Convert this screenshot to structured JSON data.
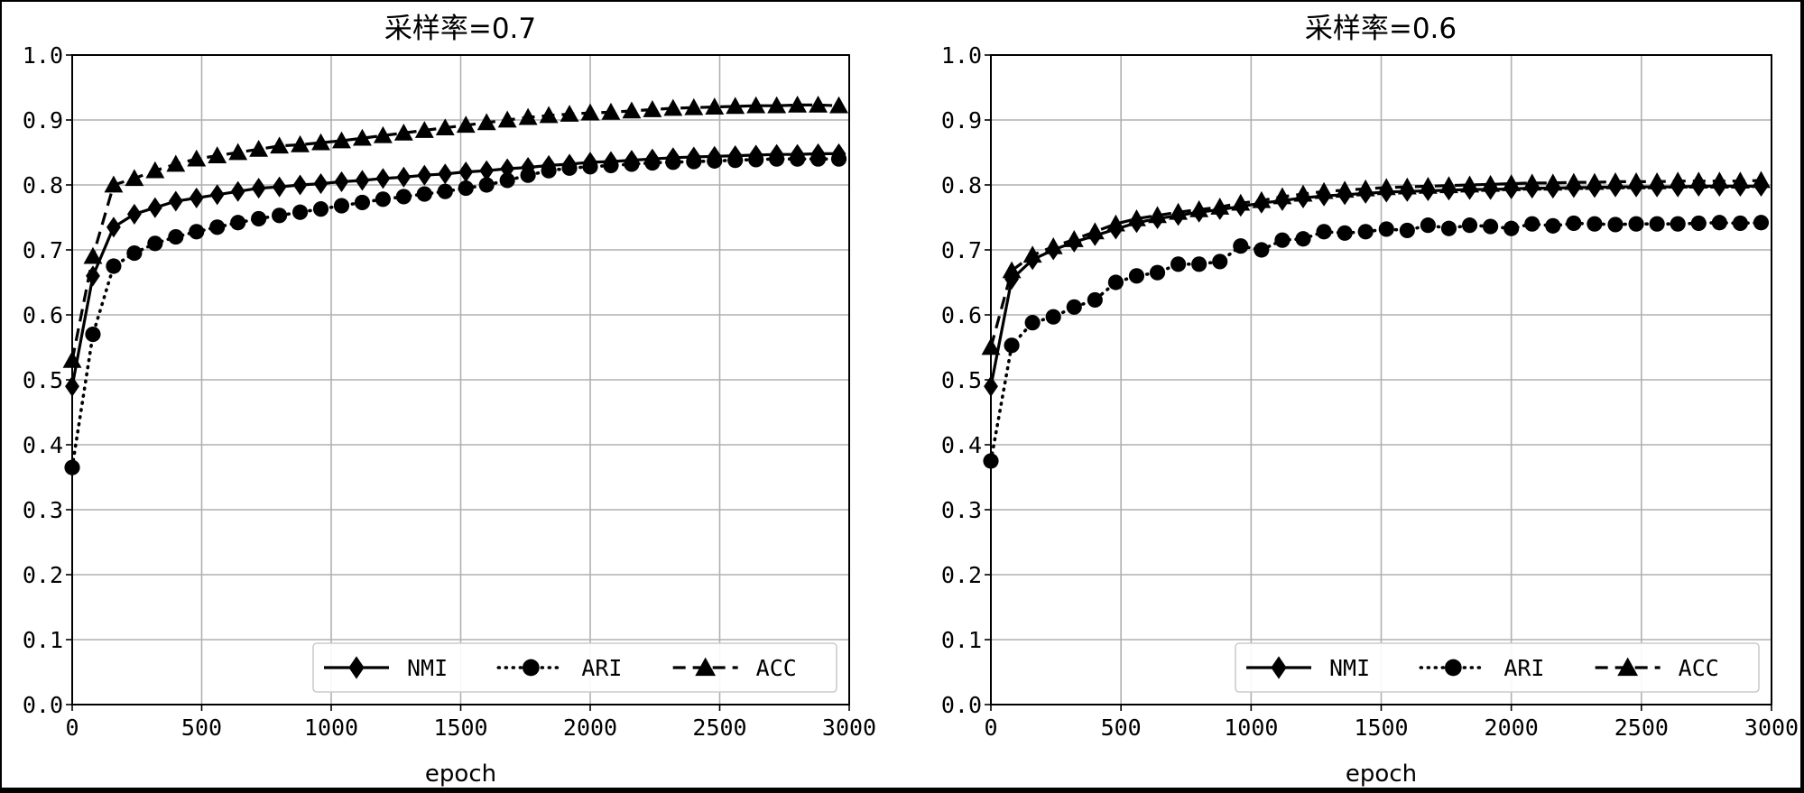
{
  "chart_data": [
    {
      "type": "line",
      "title": "采样率=0.7",
      "xlabel": "epoch",
      "ylabel": "",
      "xlim": [
        0,
        3000
      ],
      "ylim": [
        0.0,
        1.0
      ],
      "xticks": [
        "0",
        "500",
        "1000",
        "1500",
        "2000",
        "2500",
        "3000"
      ],
      "yticks": [
        "0.0",
        "0.1",
        "0.2",
        "0.3",
        "0.4",
        "0.5",
        "0.6",
        "0.7",
        "0.8",
        "0.9",
        "1.0"
      ],
      "grid": true,
      "legend_position": "bottom-right",
      "x": [
        0,
        80,
        160,
        240,
        320,
        400,
        480,
        560,
        640,
        720,
        800,
        880,
        960,
        1040,
        1120,
        1200,
        1280,
        1360,
        1440,
        1520,
        1600,
        1680,
        1760,
        1840,
        1920,
        2000,
        2080,
        2160,
        2240,
        2320,
        2400,
        2480,
        2560,
        2640,
        2720,
        2800,
        2880,
        2960
      ],
      "series": [
        {
          "name": "NMI",
          "marker": "diamond",
          "linestyle": "solid",
          "values": [
            0.49,
            0.66,
            0.735,
            0.755,
            0.765,
            0.775,
            0.78,
            0.785,
            0.79,
            0.795,
            0.797,
            0.8,
            0.802,
            0.805,
            0.807,
            0.81,
            0.812,
            0.815,
            0.817,
            0.82,
            0.822,
            0.825,
            0.827,
            0.83,
            0.832,
            0.835,
            0.836,
            0.838,
            0.84,
            0.842,
            0.843,
            0.844,
            0.845,
            0.846,
            0.847,
            0.847,
            0.848,
            0.848
          ]
        },
        {
          "name": "ARI",
          "marker": "circle",
          "linestyle": "dotted",
          "values": [
            0.365,
            0.57,
            0.675,
            0.695,
            0.71,
            0.72,
            0.728,
            0.735,
            0.742,
            0.748,
            0.753,
            0.758,
            0.763,
            0.768,
            0.773,
            0.778,
            0.782,
            0.786,
            0.79,
            0.795,
            0.8,
            0.807,
            0.815,
            0.822,
            0.826,
            0.828,
            0.83,
            0.832,
            0.834,
            0.835,
            0.836,
            0.837,
            0.838,
            0.839,
            0.84,
            0.84,
            0.84,
            0.84
          ]
        },
        {
          "name": "ACC",
          "marker": "triangle",
          "linestyle": "dashed",
          "values": [
            0.53,
            0.69,
            0.8,
            0.81,
            0.822,
            0.832,
            0.84,
            0.845,
            0.85,
            0.855,
            0.86,
            0.862,
            0.865,
            0.868,
            0.872,
            0.876,
            0.88,
            0.884,
            0.888,
            0.892,
            0.896,
            0.9,
            0.904,
            0.907,
            0.909,
            0.911,
            0.912,
            0.914,
            0.916,
            0.918,
            0.919,
            0.92,
            0.921,
            0.922,
            0.922,
            0.923,
            0.923,
            0.922
          ]
        }
      ]
    },
    {
      "type": "line",
      "title": "采样率=0.6",
      "xlabel": "epoch",
      "ylabel": "",
      "xlim": [
        0,
        3000
      ],
      "ylim": [
        0.0,
        1.0
      ],
      "xticks": [
        "0",
        "500",
        "1000",
        "1500",
        "2000",
        "2500",
        "3000"
      ],
      "yticks": [
        "0.0",
        "0.1",
        "0.2",
        "0.3",
        "0.4",
        "0.5",
        "0.6",
        "0.7",
        "0.8",
        "0.9",
        "1.0"
      ],
      "grid": true,
      "legend_position": "bottom-right",
      "x": [
        0,
        80,
        160,
        240,
        320,
        400,
        480,
        560,
        640,
        720,
        800,
        880,
        960,
        1040,
        1120,
        1200,
        1280,
        1360,
        1440,
        1520,
        1600,
        1680,
        1760,
        1840,
        1920,
        2000,
        2080,
        2160,
        2240,
        2320,
        2400,
        2480,
        2560,
        2640,
        2720,
        2800,
        2880,
        2960
      ],
      "series": [
        {
          "name": "NMI",
          "marker": "diamond",
          "linestyle": "solid",
          "values": [
            0.49,
            0.655,
            0.685,
            0.7,
            0.712,
            0.722,
            0.732,
            0.742,
            0.748,
            0.753,
            0.758,
            0.762,
            0.767,
            0.772,
            0.776,
            0.78,
            0.783,
            0.785,
            0.787,
            0.789,
            0.79,
            0.791,
            0.792,
            0.793,
            0.793,
            0.794,
            0.795,
            0.795,
            0.796,
            0.796,
            0.797,
            0.797,
            0.797,
            0.797,
            0.798,
            0.798,
            0.798,
            0.798
          ]
        },
        {
          "name": "ARI",
          "marker": "circle",
          "linestyle": "dotted",
          "values": [
            0.375,
            0.553,
            0.588,
            0.597,
            0.612,
            0.623,
            0.65,
            0.66,
            0.665,
            0.678,
            0.678,
            0.682,
            0.706,
            0.7,
            0.715,
            0.717,
            0.728,
            0.726,
            0.728,
            0.732,
            0.73,
            0.738,
            0.733,
            0.738,
            0.736,
            0.733,
            0.74,
            0.737,
            0.741,
            0.74,
            0.739,
            0.74,
            0.74,
            0.74,
            0.741,
            0.742,
            0.741,
            0.742
          ]
        },
        {
          "name": "ACC",
          "marker": "triangle",
          "linestyle": "dashed",
          "values": [
            0.55,
            0.668,
            0.692,
            0.705,
            0.716,
            0.728,
            0.74,
            0.748,
            0.753,
            0.758,
            0.762,
            0.766,
            0.772,
            0.776,
            0.782,
            0.786,
            0.79,
            0.792,
            0.794,
            0.796,
            0.797,
            0.798,
            0.799,
            0.8,
            0.801,
            0.802,
            0.803,
            0.803,
            0.804,
            0.804,
            0.805,
            0.805,
            0.805,
            0.806,
            0.806,
            0.806,
            0.806,
            0.807
          ]
        }
      ]
    }
  ]
}
